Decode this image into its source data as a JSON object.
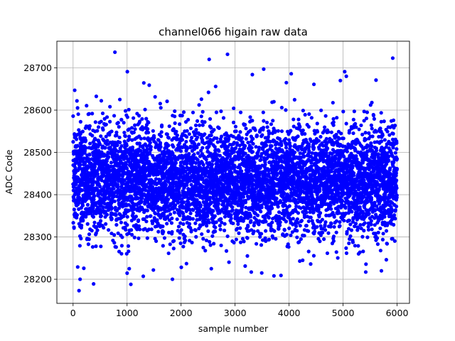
{
  "chart_data": {
    "type": "scatter",
    "title": "channel066 higain raw data",
    "xlabel": "sample number",
    "ylabel": "ADC Code",
    "xlim": [
      -300,
      6230
    ],
    "ylim": [
      28143,
      28763
    ],
    "xticks": [
      0,
      1000,
      2000,
      3000,
      4000,
      5000,
      6000
    ],
    "yticks": [
      28200,
      28300,
      28400,
      28500,
      28600,
      28700
    ],
    "xtick_labels": [
      "0",
      "1000",
      "2000",
      "3000",
      "4000",
      "5000",
      "6000"
    ],
    "ytick_labels": [
      "28200",
      "28300",
      "28400",
      "28500",
      "28600",
      "28700"
    ],
    "grid": true,
    "marker_color": "#0000ff",
    "sample_count": 6000,
    "distribution": {
      "center": 28435,
      "spread": 65,
      "min_seen": 28173,
      "max_seen": 28737
    },
    "notable_points": [
      {
        "x": 775,
        "y": 28737
      },
      {
        "x": 2860,
        "y": 28732
      },
      {
        "x": 5920,
        "y": 28723
      },
      {
        "x": 2520,
        "y": 28720
      },
      {
        "x": 3530,
        "y": 28697
      },
      {
        "x": 1005,
        "y": 28691
      },
      {
        "x": 5030,
        "y": 28691
      },
      {
        "x": 4040,
        "y": 28686
      },
      {
        "x": 3320,
        "y": 28684
      },
      {
        "x": 5060,
        "y": 28680
      },
      {
        "x": 5610,
        "y": 28671
      },
      {
        "x": 4950,
        "y": 28670
      },
      {
        "x": 3950,
        "y": 28665
      },
      {
        "x": 1410,
        "y": 28659
      },
      {
        "x": 2640,
        "y": 28656
      },
      {
        "x": 4460,
        "y": 28661
      },
      {
        "x": 30,
        "y": 28647
      },
      {
        "x": 130,
        "y": 28200
      },
      {
        "x": 1840,
        "y": 28200
      },
      {
        "x": 380,
        "y": 28189
      },
      {
        "x": 1070,
        "y": 28188
      },
      {
        "x": 110,
        "y": 28173
      },
      {
        "x": 1040,
        "y": 28225
      },
      {
        "x": 2560,
        "y": 28225
      },
      {
        "x": 1300,
        "y": 28207
      },
      {
        "x": 3720,
        "y": 28208
      },
      {
        "x": 3850,
        "y": 28209
      },
      {
        "x": 3300,
        "y": 28217
      },
      {
        "x": 5420,
        "y": 28217
      },
      {
        "x": 5710,
        "y": 28220
      },
      {
        "x": 4400,
        "y": 28236
      },
      {
        "x": 2100,
        "y": 28237
      }
    ]
  }
}
